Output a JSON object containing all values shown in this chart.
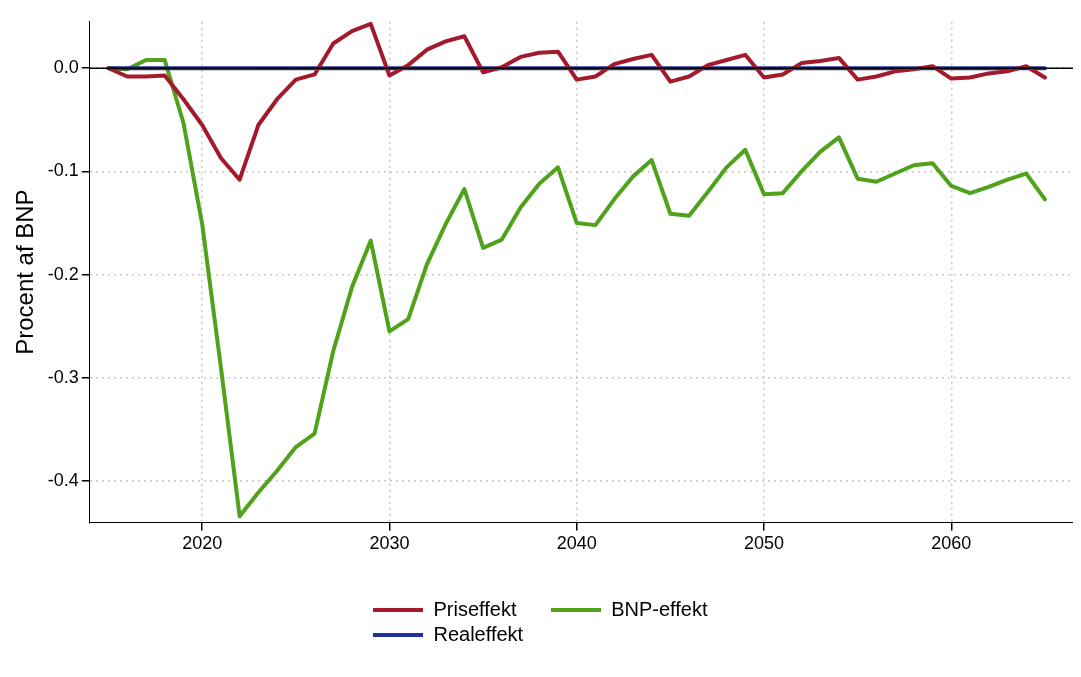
{
  "chart_data": {
    "type": "line",
    "ylabel": "Procent af BNP",
    "x": [
      2015,
      2016,
      2017,
      2018,
      2019,
      2020,
      2021,
      2022,
      2023,
      2024,
      2025,
      2026,
      2027,
      2028,
      2029,
      2030,
      2031,
      2032,
      2033,
      2034,
      2035,
      2036,
      2037,
      2038,
      2039,
      2040,
      2041,
      2042,
      2043,
      2044,
      2045,
      2046,
      2047,
      2048,
      2049,
      2050,
      2051,
      2052,
      2053,
      2054,
      2055,
      2056,
      2057,
      2058,
      2059,
      2060,
      2061,
      2062,
      2063,
      2064,
      2065
    ],
    "series": [
      {
        "name": "Priseffekt",
        "color": "#a31a2c",
        "values": [
          0,
          -0.008,
          -0.008,
          -0.007,
          -0.03,
          -0.055,
          -0.087,
          -0.108,
          -0.055,
          -0.03,
          -0.011,
          -0.006,
          0.024,
          0.036,
          0.043,
          -0.007,
          0.003,
          0.018,
          0.026,
          0.031,
          -0.004,
          0.001,
          0.011,
          0.015,
          0.016,
          -0.011,
          -0.008,
          0.004,
          0.009,
          0.013,
          -0.013,
          -0.008,
          0.003,
          0.008,
          0.013,
          -0.009,
          -0.006,
          0.005,
          0.007,
          0.01,
          -0.011,
          -0.008,
          -0.003,
          -0.001,
          0.002,
          -0.01,
          -0.009,
          -0.005,
          -0.003,
          0.002,
          -0.009
        ]
      },
      {
        "name": "Realeffekt",
        "color": "#1f2f9e",
        "values": [
          0,
          0,
          0,
          0,
          0,
          0,
          0,
          0,
          0,
          0,
          0,
          0,
          0,
          0,
          0,
          0,
          0,
          0,
          0,
          0,
          0,
          0,
          0,
          0,
          0,
          0,
          0,
          0,
          0,
          0,
          0,
          0,
          0,
          0,
          0,
          0,
          0,
          0,
          0,
          0,
          0,
          0,
          0,
          0,
          0,
          0,
          0,
          0,
          0,
          0,
          0
        ]
      },
      {
        "name": "BNP-effekt",
        "color": "#4fa21a",
        "values": [
          0,
          -0.001,
          0.008,
          0.008,
          -0.053,
          -0.151,
          -0.29,
          -0.434,
          -0.411,
          -0.39,
          -0.367,
          -0.354,
          -0.274,
          -0.212,
          -0.167,
          -0.255,
          -0.243,
          -0.19,
          -0.151,
          -0.117,
          -0.174,
          -0.166,
          -0.135,
          -0.112,
          -0.096,
          -0.15,
          -0.152,
          -0.127,
          -0.105,
          -0.089,
          -0.141,
          -0.143,
          -0.12,
          -0.096,
          -0.079,
          -0.122,
          -0.121,
          -0.1,
          -0.081,
          -0.067,
          -0.107,
          -0.11,
          -0.102,
          -0.094,
          -0.092,
          -0.114,
          -0.121,
          -0.115,
          -0.108,
          -0.102,
          -0.127
        ]
      }
    ],
    "xlim": [
      2014,
      2066.5
    ],
    "xticks": [
      2020,
      2030,
      2040,
      2050,
      2060
    ],
    "ylim": [
      -0.44,
      0.045
    ],
    "yticks": [
      {
        "value": -0.4,
        "label": "-0.4"
      },
      {
        "value": -0.3,
        "label": "-0.3"
      },
      {
        "value": -0.2,
        "label": "-0.2"
      },
      {
        "value": -0.1,
        "label": "-0.1"
      },
      {
        "value": 0,
        "label": "0.0"
      }
    ],
    "ref_lines": [
      {
        "axis": "y",
        "value": 0,
        "color": "#000000"
      }
    ],
    "grid": true,
    "legend": "bottom",
    "marker": "none",
    "line_style": "solid"
  }
}
